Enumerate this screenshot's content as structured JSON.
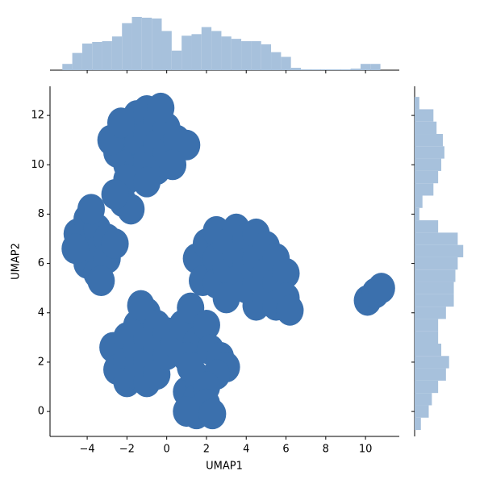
{
  "chart_data": [
    {
      "type": "scatter",
      "xlabel": "UMAP1",
      "ylabel": "UMAP2",
      "color": "#3b70ad",
      "xlim": [
        -5.87,
        11.7
      ],
      "ylim": [
        -1.01,
        13.18
      ],
      "xticks": [
        {
          "value": -4,
          "label": "−4"
        },
        {
          "value": -2,
          "label": "−2"
        },
        0,
        2,
        4,
        6,
        8,
        10
      ],
      "yticks": [
        0,
        2,
        4,
        6,
        8,
        10,
        12
      ],
      "x": [
        -2.5,
        -2,
        -2,
        -1.5,
        -1.5,
        -1.5,
        -1,
        -1,
        -1,
        -0.5,
        -0.5,
        -0.5,
        0,
        0,
        0.5,
        1,
        -2.8,
        -2,
        -1,
        0.3,
        -0.3,
        -2.3,
        -4.5,
        -4.3,
        -4,
        -4,
        -4,
        -3.5,
        -3.5,
        -3.5,
        -3,
        -3,
        -3.8,
        -3.3,
        -2.6,
        -4.6,
        -2.2,
        -1.8,
        -2.6,
        1.5,
        1.8,
        2,
        2.5,
        2.5,
        2.5,
        3,
        3,
        3.5,
        3.5,
        3.5,
        4,
        4,
        4,
        4.5,
        4.5,
        4.5,
        4.5,
        5,
        5,
        5,
        5.5,
        5.5,
        5.5,
        6,
        6,
        6.2,
        3,
        -2.7,
        -2.5,
        -2,
        -2,
        -2,
        -1.5,
        -1.5,
        -1.5,
        -1,
        -1,
        -1,
        -1,
        -0.5,
        -0.5,
        -0.5,
        0,
        0,
        0.4,
        -1.3,
        0.8,
        1.2,
        1.5,
        1,
        2,
        2.2,
        2.7,
        3,
        2.5,
        1,
        1.5,
        1.5,
        1.5,
        2,
        2,
        1,
        2.3,
        1.2,
        10.1,
        10.5,
        10.8
      ],
      "y": [
        10.5,
        11.3,
        10,
        12,
        11,
        9.8,
        12.2,
        11.2,
        10.2,
        11.8,
        10.8,
        9.8,
        11.5,
        10.5,
        11,
        10.8,
        11,
        9.4,
        9.3,
        10,
        12.3,
        11.7,
        7.2,
        6.5,
        7.8,
        6.8,
        6,
        7.4,
        6.5,
        5.6,
        7,
        6.2,
        8.2,
        5.3,
        6.8,
        6.6,
        8.5,
        8.2,
        8.8,
        6.2,
        5.3,
        6.8,
        7.3,
        6.2,
        5.2,
        6.8,
        5.8,
        7.4,
        6.4,
        5.3,
        7,
        6,
        5,
        7.2,
        6.2,
        5.2,
        4.3,
        6.7,
        5.6,
        4.6,
        6.2,
        5.2,
        4.3,
        5.6,
        4.6,
        4.1,
        4.6,
        2.6,
        1.7,
        3,
        2,
        1.2,
        3.5,
        2.5,
        1.5,
        4,
        3,
        2,
        1.2,
        3.5,
        2.5,
        1.5,
        3.2,
        2.3,
        2.8,
        4.3,
        3.5,
        4.2,
        2.8,
        2.2,
        3.5,
        2.5,
        2.2,
        1.8,
        1.5,
        0.8,
        1.4,
        0.5,
        -0.1,
        1,
        0.3,
        0,
        -0.1,
        1.8,
        4.5,
        4.8,
        5
      ]
    },
    {
      "type": "histogram",
      "orientation": "vertical",
      "color": "#a7c1dc",
      "ylim": [
        0,
        70
      ],
      "bins": [
        -5.25,
        -4.75,
        -4.25,
        -3.75,
        -3.25,
        -2.75,
        -2.25,
        -1.75,
        -1.25,
        -0.75,
        -0.25,
        0.25,
        0.75,
        1.25,
        1.75,
        2.25,
        2.75,
        3.25,
        3.75,
        4.25,
        4.75,
        5.25,
        5.75,
        6.25,
        6.75,
        7.25,
        7.75,
        8.25,
        8.75,
        9.25,
        9.75,
        10.25,
        10.75
      ],
      "values": [
        8,
        22,
        34,
        36,
        37,
        43,
        60,
        68,
        67,
        66,
        50,
        25,
        44,
        46,
        55,
        50,
        43,
        40,
        37,
        37,
        33,
        23,
        17,
        3,
        1,
        1,
        1,
        1,
        1,
        2,
        8,
        8
      ]
    },
    {
      "type": "histogram",
      "orientation": "horizontal",
      "color": "#a7c1dc",
      "xlim": [
        0,
        70
      ],
      "bins": [
        -0.75,
        -0.25,
        0.25,
        0.75,
        1.25,
        1.75,
        2.25,
        2.75,
        3.25,
        3.75,
        4.25,
        4.75,
        5.25,
        5.75,
        6.25,
        6.75,
        7.25,
        7.75,
        8.25,
        8.75,
        9.25,
        9.75,
        10.25,
        10.75,
        11.25,
        11.75,
        12.25,
        12.75
      ],
      "values": [
        8,
        18,
        22,
        30,
        40,
        44,
        34,
        30,
        30,
        40,
        50,
        50,
        52,
        55,
        62,
        55,
        30,
        6,
        10,
        24,
        30,
        34,
        38,
        36,
        28,
        24,
        6
      ]
    }
  ]
}
